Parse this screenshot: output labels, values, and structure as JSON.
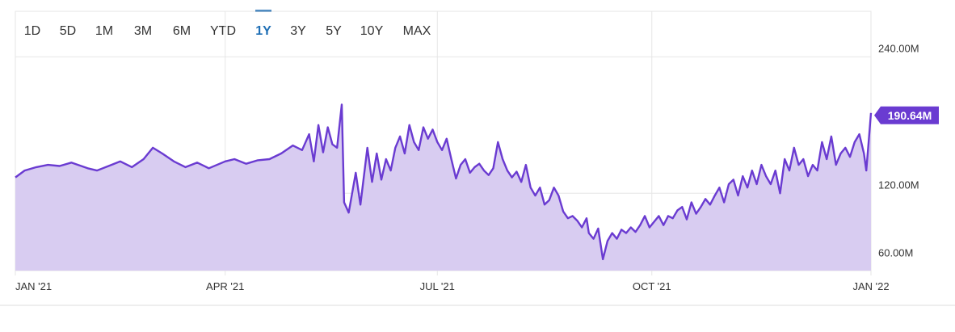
{
  "range_selector": {
    "buttons": [
      "1D",
      "5D",
      "1M",
      "3M",
      "6M",
      "YTD",
      "1Y",
      "3Y",
      "5Y",
      "10Y",
      "MAX"
    ],
    "active": "1Y"
  },
  "colors": {
    "line": "#6a3bd1",
    "fill": "#d8ccf1",
    "accent": "#1f6fb5",
    "flag": "#6a3bd1",
    "grid": "#e6e6e6"
  },
  "chart_data": {
    "type": "area",
    "title": "",
    "xlabel": "",
    "ylabel": "",
    "x_ticks": [
      "JAN '21",
      "APR '21",
      "JUL '21",
      "OCT '21",
      "JAN '22"
    ],
    "y_ticks": [
      "60.00M",
      "120.00M",
      "240.00M"
    ],
    "ylim": [
      52,
      280
    ],
    "xlim": [
      "2021-01-01",
      "2022-01-03"
    ],
    "last_value_label": "190.64M",
    "series": [
      {
        "values": [
          [
            "2021-01-01",
            134
          ],
          [
            "2021-01-05",
            140
          ],
          [
            "2021-01-10",
            143
          ],
          [
            "2021-01-15",
            145
          ],
          [
            "2021-01-20",
            144
          ],
          [
            "2021-01-25",
            147
          ],
          [
            "2021-02-01",
            142
          ],
          [
            "2021-02-05",
            140
          ],
          [
            "2021-02-10",
            144
          ],
          [
            "2021-02-15",
            148
          ],
          [
            "2021-02-20",
            143
          ],
          [
            "2021-02-25",
            150
          ],
          [
            "2021-03-01",
            160
          ],
          [
            "2021-03-05",
            155
          ],
          [
            "2021-03-10",
            148
          ],
          [
            "2021-03-15",
            143
          ],
          [
            "2021-03-20",
            147
          ],
          [
            "2021-03-25",
            142
          ],
          [
            "2021-04-01",
            148
          ],
          [
            "2021-04-05",
            150
          ],
          [
            "2021-04-10",
            146
          ],
          [
            "2021-04-15",
            149
          ],
          [
            "2021-04-20",
            150
          ],
          [
            "2021-04-25",
            155
          ],
          [
            "2021-04-30",
            162
          ],
          [
            "2021-05-04",
            158
          ],
          [
            "2021-05-07",
            172
          ],
          [
            "2021-05-09",
            148
          ],
          [
            "2021-05-11",
            180
          ],
          [
            "2021-05-13",
            156
          ],
          [
            "2021-05-15",
            178
          ],
          [
            "2021-05-17",
            163
          ],
          [
            "2021-05-19",
            160
          ],
          [
            "2021-05-21",
            198
          ],
          [
            "2021-05-22",
            112
          ],
          [
            "2021-05-24",
            103
          ],
          [
            "2021-05-27",
            138
          ],
          [
            "2021-05-29",
            110
          ],
          [
            "2021-06-01",
            160
          ],
          [
            "2021-06-03",
            130
          ],
          [
            "2021-06-05",
            155
          ],
          [
            "2021-06-07",
            132
          ],
          [
            "2021-06-09",
            150
          ],
          [
            "2021-06-11",
            140
          ],
          [
            "2021-06-13",
            160
          ],
          [
            "2021-06-15",
            170
          ],
          [
            "2021-06-17",
            155
          ],
          [
            "2021-06-19",
            180
          ],
          [
            "2021-06-21",
            165
          ],
          [
            "2021-06-23",
            158
          ],
          [
            "2021-06-25",
            178
          ],
          [
            "2021-06-27",
            168
          ],
          [
            "2021-06-29",
            176
          ],
          [
            "2021-07-01",
            165
          ],
          [
            "2021-07-03",
            158
          ],
          [
            "2021-07-05",
            168
          ],
          [
            "2021-07-07",
            150
          ],
          [
            "2021-07-09",
            133
          ],
          [
            "2021-07-11",
            145
          ],
          [
            "2021-07-13",
            150
          ],
          [
            "2021-07-15",
            138
          ],
          [
            "2021-07-17",
            143
          ],
          [
            "2021-07-19",
            146
          ],
          [
            "2021-07-21",
            140
          ],
          [
            "2021-07-23",
            136
          ],
          [
            "2021-07-25",
            142
          ],
          [
            "2021-07-27",
            165
          ],
          [
            "2021-07-29",
            150
          ],
          [
            "2021-07-31",
            140
          ],
          [
            "2021-08-02",
            134
          ],
          [
            "2021-08-04",
            139
          ],
          [
            "2021-08-06",
            130
          ],
          [
            "2021-08-08",
            145
          ],
          [
            "2021-08-10",
            125
          ],
          [
            "2021-08-12",
            118
          ],
          [
            "2021-08-14",
            125
          ],
          [
            "2021-08-16",
            110
          ],
          [
            "2021-08-18",
            114
          ],
          [
            "2021-08-20",
            125
          ],
          [
            "2021-08-22",
            118
          ],
          [
            "2021-08-24",
            104
          ],
          [
            "2021-08-26",
            98
          ],
          [
            "2021-08-28",
            100
          ],
          [
            "2021-08-30",
            96
          ],
          [
            "2021-09-01",
            90
          ],
          [
            "2021-09-03",
            98
          ],
          [
            "2021-09-04",
            85
          ],
          [
            "2021-09-06",
            80
          ],
          [
            "2021-09-08",
            89
          ],
          [
            "2021-09-10",
            62
          ],
          [
            "2021-09-12",
            78
          ],
          [
            "2021-09-14",
            85
          ],
          [
            "2021-09-16",
            80
          ],
          [
            "2021-09-18",
            88
          ],
          [
            "2021-09-20",
            85
          ],
          [
            "2021-09-22",
            90
          ],
          [
            "2021-09-24",
            86
          ],
          [
            "2021-09-26",
            92
          ],
          [
            "2021-09-28",
            100
          ],
          [
            "2021-09-30",
            90
          ],
          [
            "2021-10-02",
            95
          ],
          [
            "2021-10-04",
            100
          ],
          [
            "2021-10-06",
            92
          ],
          [
            "2021-10-08",
            100
          ],
          [
            "2021-10-10",
            98
          ],
          [
            "2021-10-12",
            105
          ],
          [
            "2021-10-14",
            108
          ],
          [
            "2021-10-16",
            97
          ],
          [
            "2021-10-18",
            112
          ],
          [
            "2021-10-20",
            102
          ],
          [
            "2021-10-22",
            108
          ],
          [
            "2021-10-24",
            115
          ],
          [
            "2021-10-26",
            110
          ],
          [
            "2021-10-28",
            118
          ],
          [
            "2021-10-30",
            125
          ],
          [
            "2021-11-01",
            112
          ],
          [
            "2021-11-03",
            128
          ],
          [
            "2021-11-05",
            132
          ],
          [
            "2021-11-07",
            118
          ],
          [
            "2021-11-09",
            135
          ],
          [
            "2021-11-11",
            125
          ],
          [
            "2021-11-13",
            140
          ],
          [
            "2021-11-15",
            128
          ],
          [
            "2021-11-17",
            145
          ],
          [
            "2021-11-19",
            135
          ],
          [
            "2021-11-21",
            128
          ],
          [
            "2021-11-23",
            140
          ],
          [
            "2021-11-25",
            120
          ],
          [
            "2021-11-27",
            150
          ],
          [
            "2021-11-29",
            140
          ],
          [
            "2021-12-01",
            160
          ],
          [
            "2021-12-03",
            145
          ],
          [
            "2021-12-05",
            150
          ],
          [
            "2021-12-07",
            135
          ],
          [
            "2021-12-09",
            145
          ],
          [
            "2021-12-11",
            140
          ],
          [
            "2021-12-13",
            165
          ],
          [
            "2021-12-15",
            150
          ],
          [
            "2021-12-17",
            170
          ],
          [
            "2021-12-19",
            145
          ],
          [
            "2021-12-21",
            155
          ],
          [
            "2021-12-23",
            160
          ],
          [
            "2021-12-25",
            152
          ],
          [
            "2021-12-27",
            165
          ],
          [
            "2021-12-29",
            172
          ],
          [
            "2021-12-31",
            155
          ],
          [
            "2022-01-01",
            140
          ],
          [
            "2022-01-02",
            165
          ],
          [
            "2022-01-03",
            190.64
          ]
        ]
      }
    ],
    "grid": true,
    "legend": "none"
  }
}
